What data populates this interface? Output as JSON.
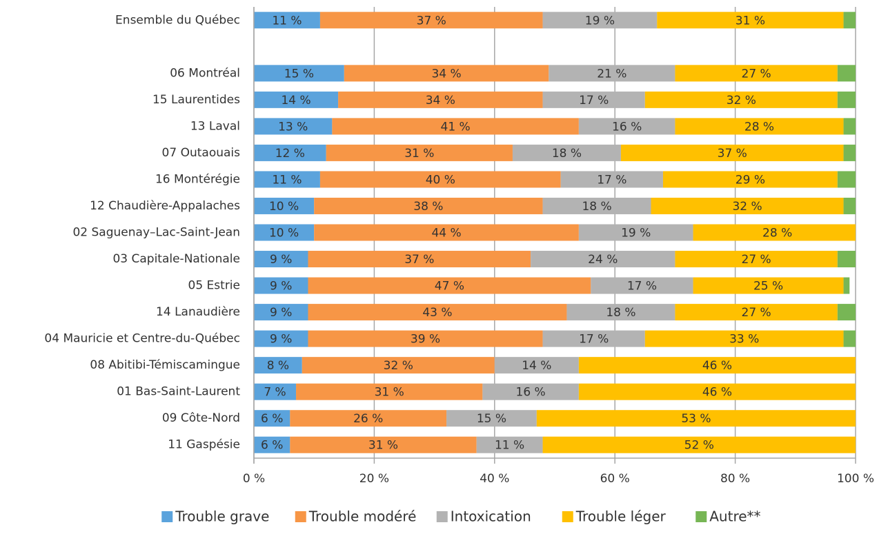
{
  "chart_data": {
    "type": "stacked_barh",
    "categories": [
      "Ensemble du Québec",
      null,
      "06 Montréal",
      "15 Laurentides",
      "13 Laval",
      "07 Outaouais",
      "16 Montérégie",
      "12 Chaudière-Appalaches",
      "02 Saguenay–Lac-Saint-Jean",
      "03 Capitale-Nationale",
      "05 Estrie",
      "14 Lanaudière",
      "04 Mauricie et Centre-du-Québec",
      "08 Abitibi-Témiscamingue",
      "01 Bas-Saint-Laurent",
      "09 Côte-Nord",
      "11 Gaspésie"
    ],
    "series": [
      {
        "name": "Trouble grave",
        "color": "#5ba3dc",
        "values": [
          11,
          null,
          15,
          14,
          13,
          12,
          11,
          10,
          10,
          9,
          9,
          9,
          9,
          8,
          7,
          6,
          6
        ],
        "value_labels": [
          "11 %",
          null,
          "15 %",
          "14 %",
          "13 %",
          "12 %",
          "11 %",
          "10 %",
          "10 %",
          "9 %",
          "9 %",
          "9 %",
          "9 %",
          "8 %",
          "7 %",
          "6 %",
          "6 %"
        ]
      },
      {
        "name": "Trouble modéré",
        "color": "#f79646",
        "values": [
          37,
          null,
          34,
          34,
          41,
          31,
          40,
          38,
          44,
          37,
          47,
          43,
          39,
          32,
          31,
          26,
          31
        ],
        "value_labels": [
          "37 %",
          null,
          "34 %",
          "34 %",
          "41 %",
          "31 %",
          "40 %",
          "38 %",
          "44 %",
          "37 %",
          "47 %",
          "43 %",
          "39 %",
          "32 %",
          "31 %",
          "26 %",
          "31 %"
        ]
      },
      {
        "name": "Intoxication",
        "color": "#b3b3b3",
        "values": [
          19,
          null,
          21,
          17,
          16,
          18,
          17,
          18,
          19,
          24,
          17,
          18,
          17,
          14,
          16,
          15,
          11
        ],
        "value_labels": [
          "19 %",
          null,
          "21 %",
          "17 %",
          "16 %",
          "18 %",
          "17 %",
          "18 %",
          "19 %",
          "24 %",
          "17 %",
          "18 %",
          "17 %",
          "14 %",
          "16 %",
          "15 %",
          "11 %"
        ]
      },
      {
        "name": "Trouble léger",
        "color": "#ffc000",
        "values": [
          31,
          null,
          27,
          32,
          28,
          37,
          29,
          32,
          28,
          27,
          25,
          27,
          33,
          46,
          46,
          53,
          52
        ],
        "value_labels": [
          "31 %",
          null,
          "27 %",
          "32 %",
          "28 %",
          "37 %",
          "29 %",
          "32 %",
          "28 %",
          "27 %",
          "25 %",
          "27 %",
          "33 %",
          "46 %",
          "46 %",
          "53 %",
          "52 %"
        ]
      },
      {
        "name": "Autre**",
        "color": "#77b655",
        "values": [
          2,
          null,
          3,
          3,
          2,
          2,
          3,
          2,
          0,
          3,
          1,
          3,
          2,
          0,
          1,
          1,
          1
        ]
      }
    ],
    "xlim": [
      0,
      100
    ],
    "xticks": [
      {
        "value": 0,
        "label": "0 %"
      },
      {
        "value": 20,
        "label": "20 %"
      },
      {
        "value": 40,
        "label": "40 %"
      },
      {
        "value": 60,
        "label": "60 %"
      },
      {
        "value": 80,
        "label": "80 %"
      },
      {
        "value": 100,
        "label": "100 %"
      }
    ],
    "grid": true,
    "legend": "bottom"
  }
}
